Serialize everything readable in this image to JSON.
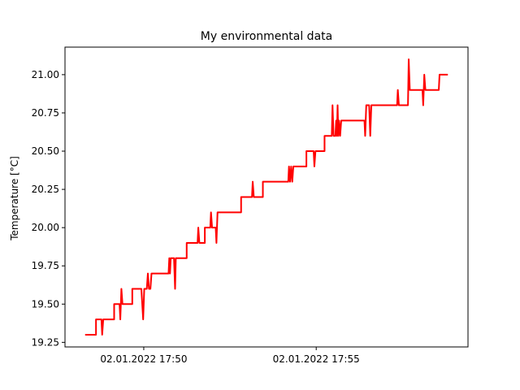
{
  "chart_data": {
    "type": "line",
    "title": "My environmental data",
    "xlabel": "",
    "ylabel": "Temperature [°C]",
    "x_unit": "time",
    "x_start": "02.01.2022 17:48:18",
    "x_end": "02.01.2022 17:58:49",
    "xlim": [
      "02.01.2022 17:47:43",
      "02.01.2022 17:59:24"
    ],
    "ylim": [
      19.22,
      21.18
    ],
    "x_ticks": [
      {
        "label": "02.01.2022 17:50",
        "value": "02.01.2022 17:50:00"
      },
      {
        "label": "02.01.2022 17:55",
        "value": "02.01.2022 17:55:00"
      }
    ],
    "y_ticks": [
      {
        "label": "19.25",
        "value": 19.25
      },
      {
        "label": "19.50",
        "value": 19.5
      },
      {
        "label": "19.75",
        "value": 19.75
      },
      {
        "label": "20.00",
        "value": 20.0
      },
      {
        "label": "20.25",
        "value": 20.25
      },
      {
        "label": "20.50",
        "value": 20.5
      },
      {
        "label": "20.75",
        "value": 20.75
      },
      {
        "label": "21.00",
        "value": 21.0
      }
    ],
    "grid": false,
    "legend": "none",
    "series": [
      {
        "color": "#ff0000",
        "points": [
          [
            0.0,
            19.3
          ],
          [
            0.03,
            19.3
          ],
          [
            0.03,
            19.4
          ],
          [
            0.045,
            19.4
          ],
          [
            0.047,
            19.3
          ],
          [
            0.05,
            19.4
          ],
          [
            0.08,
            19.4
          ],
          [
            0.08,
            19.5
          ],
          [
            0.095,
            19.5
          ],
          [
            0.097,
            19.4
          ],
          [
            0.1,
            19.6
          ],
          [
            0.103,
            19.5
          ],
          [
            0.13,
            19.5
          ],
          [
            0.13,
            19.6
          ],
          [
            0.155,
            19.6
          ],
          [
            0.16,
            19.4
          ],
          [
            0.163,
            19.6
          ],
          [
            0.17,
            19.6
          ],
          [
            0.173,
            19.7
          ],
          [
            0.176,
            19.6
          ],
          [
            0.18,
            19.6
          ],
          [
            0.183,
            19.7
          ],
          [
            0.23,
            19.7
          ],
          [
            0.232,
            19.8
          ],
          [
            0.234,
            19.7
          ],
          [
            0.236,
            19.8
          ],
          [
            0.245,
            19.8
          ],
          [
            0.248,
            19.6
          ],
          [
            0.25,
            19.8
          ],
          [
            0.28,
            19.8
          ],
          [
            0.28,
            19.9
          ],
          [
            0.31,
            19.9
          ],
          [
            0.312,
            20.0
          ],
          [
            0.315,
            19.9
          ],
          [
            0.33,
            19.9
          ],
          [
            0.33,
            20.0
          ],
          [
            0.345,
            20.0
          ],
          [
            0.347,
            20.1
          ],
          [
            0.35,
            20.0
          ],
          [
            0.36,
            20.0
          ],
          [
            0.362,
            19.9
          ],
          [
            0.365,
            20.1
          ],
          [
            0.43,
            20.1
          ],
          [
            0.43,
            20.2
          ],
          [
            0.46,
            20.2
          ],
          [
            0.462,
            20.3
          ],
          [
            0.465,
            20.2
          ],
          [
            0.49,
            20.2
          ],
          [
            0.49,
            20.3
          ],
          [
            0.56,
            20.3
          ],
          [
            0.562,
            20.4
          ],
          [
            0.565,
            20.3
          ],
          [
            0.568,
            20.4
          ],
          [
            0.571,
            20.3
          ],
          [
            0.574,
            20.4
          ],
          [
            0.61,
            20.4
          ],
          [
            0.61,
            20.5
          ],
          [
            0.63,
            20.5
          ],
          [
            0.632,
            20.4
          ],
          [
            0.635,
            20.5
          ],
          [
            0.66,
            20.5
          ],
          [
            0.66,
            20.6
          ],
          [
            0.68,
            20.6
          ],
          [
            0.682,
            20.8
          ],
          [
            0.685,
            20.6
          ],
          [
            0.69,
            20.6
          ],
          [
            0.692,
            20.7
          ],
          [
            0.694,
            20.6
          ],
          [
            0.696,
            20.8
          ],
          [
            0.698,
            20.6
          ],
          [
            0.7,
            20.7
          ],
          [
            0.703,
            20.6
          ],
          [
            0.706,
            20.7
          ],
          [
            0.77,
            20.7
          ],
          [
            0.772,
            20.6
          ],
          [
            0.775,
            20.8
          ],
          [
            0.783,
            20.8
          ],
          [
            0.786,
            20.6
          ],
          [
            0.789,
            20.8
          ],
          [
            0.86,
            20.8
          ],
          [
            0.862,
            20.9
          ],
          [
            0.865,
            20.8
          ],
          [
            0.89,
            20.8
          ],
          [
            0.892,
            21.1
          ],
          [
            0.895,
            20.9
          ],
          [
            0.93,
            20.9
          ],
          [
            0.932,
            20.8
          ],
          [
            0.935,
            21.0
          ],
          [
            0.938,
            20.9
          ],
          [
            0.975,
            20.9
          ],
          [
            0.977,
            21.0
          ],
          [
            1.0,
            21.0
          ]
        ]
      }
    ]
  }
}
